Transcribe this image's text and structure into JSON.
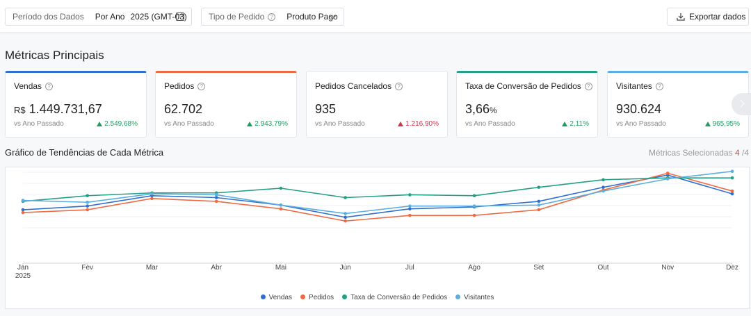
{
  "filters": {
    "period_label": "Período dos Dados",
    "period_mode": "Por Ano",
    "period_value": "2025 (GMT-03)",
    "order_type_label": "Tipo de Pedido",
    "order_type_value": "Produto Pago"
  },
  "export_label": "Exportar dados",
  "section_title": "Métricas Principais",
  "cards": [
    {
      "name": "Vendas",
      "currency": "R$",
      "value": "1.449.731,67",
      "suffix": "",
      "compare": "vs Ano Passado",
      "change": "2.549,68%",
      "trend": "up",
      "selected": true,
      "accent": "#2f6fce"
    },
    {
      "name": "Pedidos",
      "currency": "",
      "value": "62.702",
      "suffix": "",
      "compare": "vs Ano Passado",
      "change": "2.943,79%",
      "trend": "up",
      "selected": true,
      "accent": "#ee6a43"
    },
    {
      "name": "Pedidos Cancelados",
      "currency": "",
      "value": "935",
      "suffix": "",
      "compare": "vs Ano Passado",
      "change": "1.216,90%",
      "trend": "up",
      "selected": false,
      "accent": ""
    },
    {
      "name": "Taxa de Conversão de Pedidos",
      "currency": "",
      "value": "3,66",
      "suffix": "%",
      "compare": "vs Ano Passado",
      "change": "2,11%",
      "trend": "up",
      "selected": true,
      "accent": "#22a085"
    },
    {
      "name": "Visitantes",
      "currency": "",
      "value": "930.624",
      "suffix": "",
      "compare": "vs Ano Passado",
      "change": "965,95%",
      "trend": "up",
      "selected": true,
      "accent": "#5aaee0"
    }
  ],
  "chart_title": "Gráfico de Tendências de Cada Métrica",
  "metrics_selected": {
    "label": "Métricas Selecionadas",
    "count": "4",
    "total": "/4"
  },
  "chart_data": {
    "type": "line",
    "categories": [
      "Jan",
      "Fev",
      "Mar",
      "Abr",
      "Mai",
      "Jun",
      "Jul",
      "Ago",
      "Set",
      "Out",
      "Nov",
      "Dez"
    ],
    "year_label": "2025",
    "y_axis_labels": false,
    "grid": true,
    "legend_position": "bottom",
    "series": [
      {
        "name": "Vendas",
        "color": "#2f6fce",
        "values": [
          57,
          61,
          72,
          70,
          62,
          49,
          58,
          60,
          66,
          81,
          94,
          74
        ]
      },
      {
        "name": "Pedidos",
        "color": "#ee6a43",
        "values": [
          54,
          57,
          69,
          66,
          58,
          45,
          51,
          51,
          57,
          78,
          96,
          77
        ]
      },
      {
        "name": "Taxa de Conversão de Pedidos",
        "color": "#22a085",
        "values": [
          66,
          72,
          75,
          75,
          80,
          70,
          73,
          72,
          81,
          89,
          91,
          91
        ]
      },
      {
        "name": "Visitantes",
        "color": "#5aaee0",
        "values": [
          67,
          65,
          74,
          73,
          62,
          53,
          61,
          61,
          62,
          77,
          90,
          98
        ]
      }
    ]
  }
}
